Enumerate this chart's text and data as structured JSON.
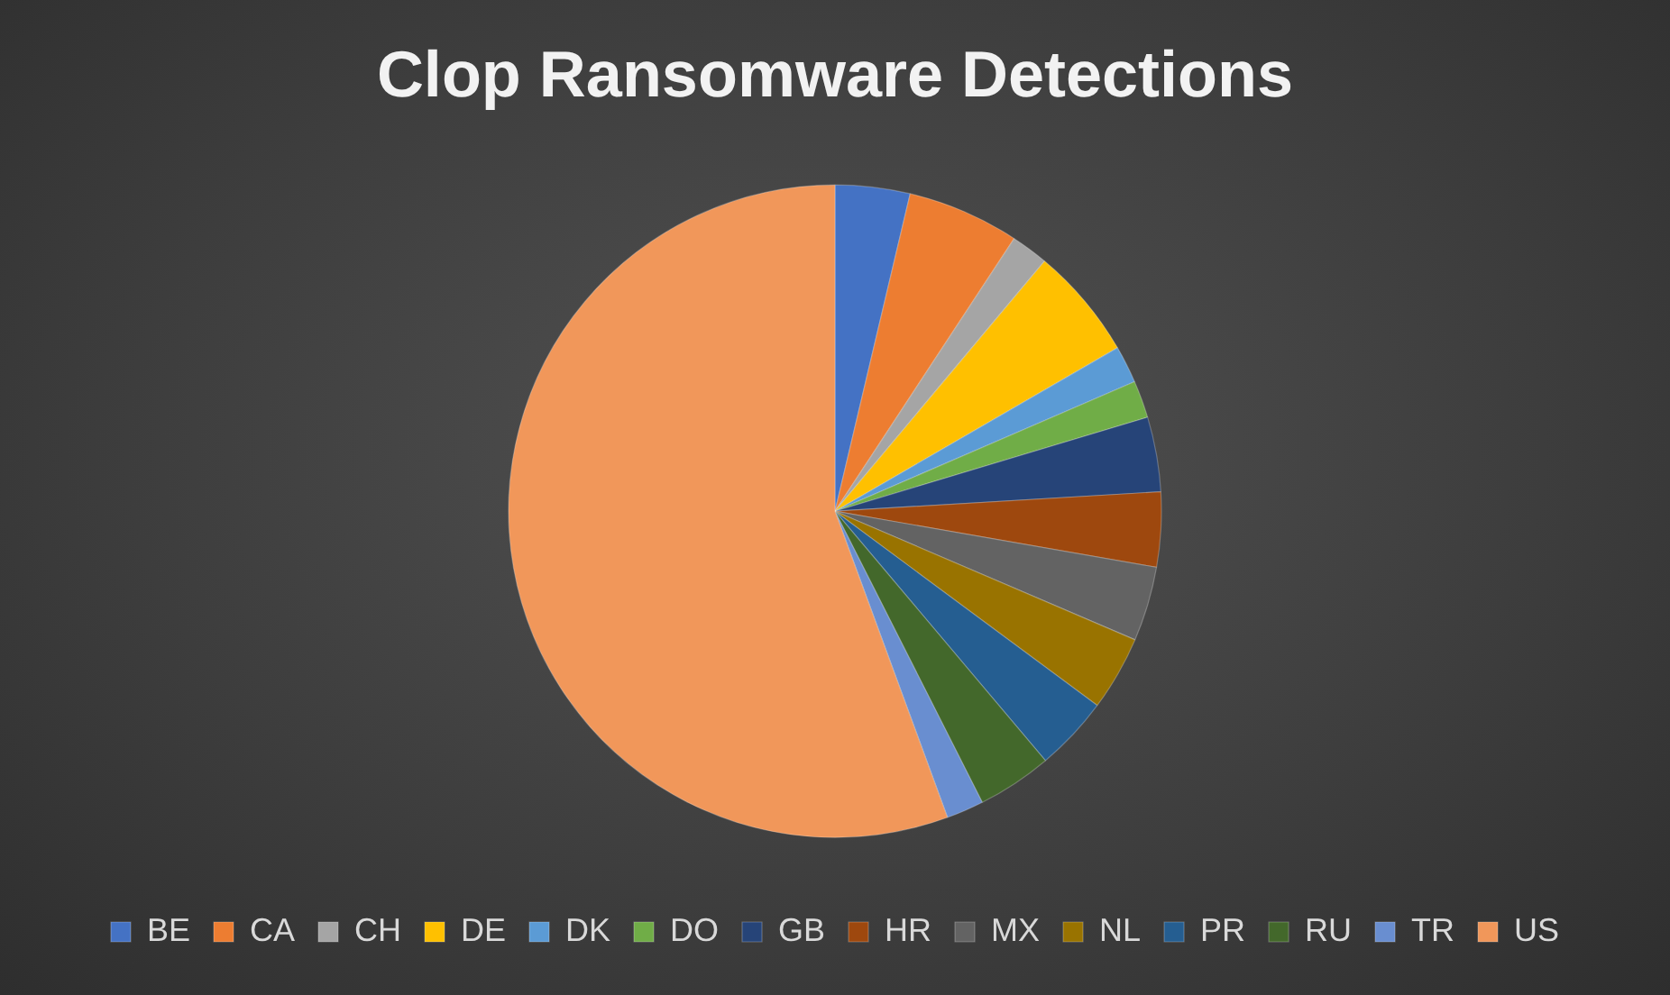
{
  "chart_data": {
    "type": "pie",
    "title": "Clop Ransomware Detections",
    "categories": [
      "BE",
      "CA",
      "CH",
      "DE",
      "DK",
      "DO",
      "GB",
      "HR",
      "MX",
      "NL",
      "PR",
      "RU",
      "TR",
      "US"
    ],
    "values": [
      3.7,
      5.55,
      1.85,
      5.55,
      1.85,
      1.85,
      3.7,
      3.7,
      3.7,
      3.7,
      3.7,
      3.7,
      1.85,
      55.6
    ],
    "colors": [
      "#4472c4",
      "#ed7d31",
      "#a5a5a5",
      "#ffc000",
      "#5b9bd5",
      "#70ad47",
      "#264478",
      "#9e480e",
      "#636363",
      "#997300",
      "#255e91",
      "#43682b",
      "#698ed0",
      "#f1975a"
    ],
    "legend": "bottom"
  }
}
